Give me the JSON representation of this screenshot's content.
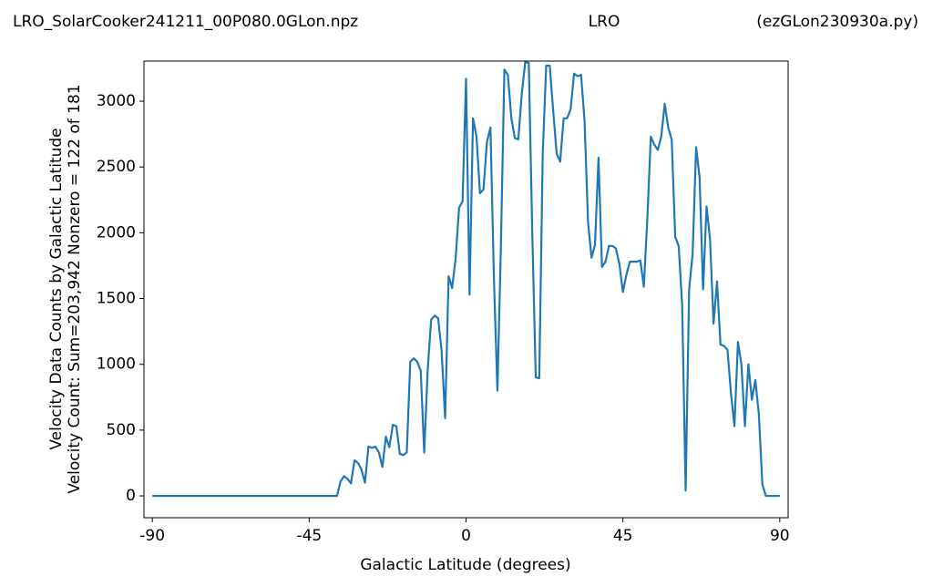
{
  "chart_data": {
    "type": "line",
    "title": "LRO_SolarCooker241211_00P080.0GLon.npz",
    "title_center": "LRO",
    "title_right": "(ezGLon230930a.py)",
    "xlabel": "Galactic Latitude (degrees)",
    "ylabel": [
      "Velocity Data Counts by Galactic Latitude",
      "Velocity Count: Sum=203,942 Nonzero = 122 of 181"
    ],
    "x": [
      -90,
      -89,
      -88,
      -87,
      -86,
      -85,
      -84,
      -83,
      -82,
      -81,
      -80,
      -79,
      -78,
      -77,
      -76,
      -75,
      -74,
      -73,
      -72,
      -71,
      -70,
      -69,
      -68,
      -67,
      -66,
      -65,
      -64,
      -63,
      -62,
      -61,
      -60,
      -59,
      -58,
      -57,
      -56,
      -55,
      -54,
      -53,
      -52,
      -51,
      -50,
      -49,
      -48,
      -47,
      -46,
      -45,
      -44,
      -43,
      -42,
      -41,
      -40,
      -39,
      -38,
      -37,
      -36,
      -35,
      -34,
      -33,
      -32,
      -31,
      -30,
      -29,
      -28,
      -27,
      -26,
      -25,
      -24,
      -23,
      -22,
      -21,
      -20,
      -19,
      -18,
      -17,
      -16,
      -15,
      -14,
      -13,
      -12,
      -11,
      -10,
      -9,
      -8,
      -7,
      -6,
      -5,
      -4,
      -3,
      -2,
      -1,
      0,
      1,
      2,
      3,
      4,
      5,
      6,
      7,
      8,
      9,
      10,
      11,
      12,
      13,
      14,
      15,
      16,
      17,
      18,
      19,
      20,
      21,
      22,
      23,
      24,
      25,
      26,
      27,
      28,
      29,
      30,
      31,
      32,
      33,
      34,
      35,
      36,
      37,
      38,
      39,
      40,
      41,
      42,
      43,
      44,
      45,
      46,
      47,
      48,
      49,
      50,
      51,
      52,
      53,
      54,
      55,
      56,
      57,
      58,
      59,
      60,
      61,
      62,
      63,
      64,
      65,
      66,
      67,
      68,
      69,
      70,
      71,
      72,
      73,
      74,
      75,
      76,
      77,
      78,
      79,
      80,
      81,
      82,
      83,
      84,
      85,
      86,
      87,
      88,
      89,
      90
    ],
    "series": [
      {
        "name": "counts",
        "color": "#1f77b4",
        "values": [
          0,
          0,
          0,
          0,
          0,
          0,
          0,
          0,
          0,
          0,
          0,
          0,
          0,
          0,
          0,
          0,
          0,
          0,
          0,
          0,
          0,
          0,
          0,
          0,
          0,
          0,
          0,
          0,
          0,
          0,
          0,
          0,
          0,
          0,
          0,
          0,
          0,
          0,
          0,
          0,
          0,
          0,
          0,
          0,
          0,
          0,
          0,
          0,
          0,
          0,
          0,
          0,
          0,
          0,
          110,
          150,
          130,
          95,
          270,
          250,
          200,
          100,
          375,
          365,
          375,
          330,
          220,
          450,
          370,
          540,
          530,
          320,
          310,
          330,
          1020,
          1045,
          1020,
          950,
          330,
          960,
          1340,
          1370,
          1350,
          1100,
          590,
          1670,
          1580,
          1800,
          2190,
          2240,
          3170,
          1530,
          2870,
          2730,
          2300,
          2330,
          2690,
          2800,
          1650,
          800,
          1900,
          3240,
          3200,
          2870,
          2720,
          2710,
          3060,
          3300,
          3290,
          2000,
          900,
          895,
          2600,
          3270,
          3270,
          2930,
          2600,
          2540,
          2870,
          2870,
          2940,
          3210,
          3190,
          3200,
          2850,
          2080,
          1810,
          1910,
          2570,
          1740,
          1780,
          1900,
          1900,
          1880,
          1760,
          1550,
          1680,
          1780,
          1780,
          1780,
          1790,
          1590,
          2100,
          2730,
          2670,
          2630,
          2730,
          2980,
          2800,
          2710,
          1970,
          1900,
          1450,
          40,
          1570,
          1840,
          2650,
          2420,
          1570,
          2200,
          1950,
          1310,
          1630,
          1150,
          1140,
          1110,
          780,
          530,
          1170,
          1000,
          530,
          1000,
          730,
          880,
          620,
          90,
          0,
          0,
          0,
          0,
          0
        ]
      }
    ],
    "xlim": [
      -92.4,
      92.4
    ],
    "ylim": [
      -166,
      3305
    ],
    "xticks": [
      -90,
      -45,
      0,
      45,
      90
    ],
    "yticks": [
      0,
      500,
      1000,
      1500,
      2000,
      2500,
      3000
    ],
    "grid": false
  }
}
